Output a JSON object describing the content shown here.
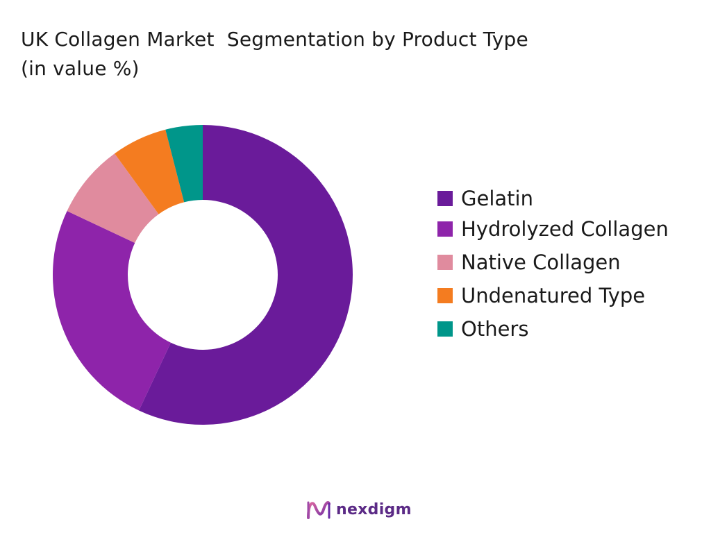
{
  "title_line1": "UK Collagen Market  Segmentation by Product Type",
  "title_line2": "(in value %)",
  "brand": {
    "name": "nexdigm",
    "logo_icon": "nexdigm-logo-icon"
  },
  "chart_data": {
    "type": "pie",
    "variant": "donut",
    "title": "UK Collagen Market  Segmentation by Product Type (in value %)",
    "legend_position": "right",
    "slices": [
      {
        "label": "Gelatin",
        "value": 57,
        "color": "#6a1b9a"
      },
      {
        "label": "Hydrolyzed Collagen",
        "value": 25,
        "color": "#8e24aa"
      },
      {
        "label": "Native Collagen",
        "value": 8,
        "color": "#e08b9e"
      },
      {
        "label": "Undenatured Type",
        "value": 6,
        "color": "#f47c20"
      },
      {
        "label": "Others",
        "value": 4,
        "color": "#00968a"
      }
    ]
  }
}
